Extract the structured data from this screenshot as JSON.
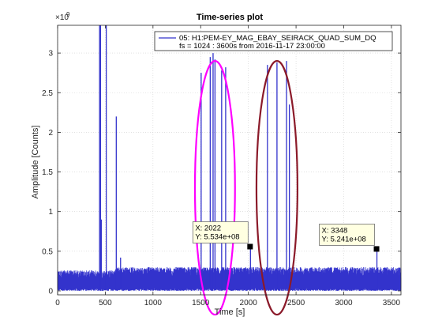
{
  "chart_data": {
    "type": "line",
    "title": "Time-series plot",
    "xlabel": "Time [s]",
    "ylabel": "Amplitude [Counts]",
    "y_exponent_label": "×10",
    "y_exponent_power": "9",
    "xlim": [
      0,
      3600
    ],
    "ylim": [
      -50000000.0,
      3350000000.0
    ],
    "x_ticks": [
      0,
      500,
      1000,
      1500,
      2000,
      2500,
      3000,
      3500
    ],
    "x_tick_labels": [
      "0",
      "500",
      "1000",
      "1500",
      "2000",
      "2500",
      "3000",
      "3500"
    ],
    "y_ticks": [
      0,
      500000000.0,
      1000000000.0,
      1500000000.0,
      2000000000.0,
      2500000000.0,
      3000000000.0
    ],
    "y_tick_labels": [
      "0",
      "0.5",
      "1",
      "1.5",
      "2",
      "2.5",
      "3"
    ],
    "grid": true,
    "legend_position": "top-right",
    "series": [
      {
        "name": "05: H1:PEM-EY_MAG_EBAY_SEIRACK_QUAD_SUM_DQ",
        "color": "#3333cc",
        "baseline": {
          "noise_low": 40000000.0,
          "noise_high": 260000000.0,
          "step_time": 600,
          "after_step_high": 300000000.0
        },
        "spikes": [
          {
            "x": 440,
            "y": 3350000000.0
          },
          {
            "x": 450,
            "y": 3350000000.0
          },
          {
            "x": 458,
            "y": 900000000.0
          },
          {
            "x": 510,
            "y": 3350000000.0
          },
          {
            "x": 615,
            "y": 2200000000.0
          },
          {
            "x": 660,
            "y": 420000000.0
          },
          {
            "x": 1505,
            "y": 2750000000.0
          },
          {
            "x": 1600,
            "y": 2950000000.0
          },
          {
            "x": 1630,
            "y": 3000000000.0
          },
          {
            "x": 1650,
            "y": 2920000000.0
          },
          {
            "x": 1720,
            "y": 2780000000.0
          },
          {
            "x": 1762,
            "y": 2820000000.0
          },
          {
            "x": 2022,
            "y": 553400000.0
          },
          {
            "x": 2200,
            "y": 2850000000.0
          },
          {
            "x": 2300,
            "y": 2880000000.0
          },
          {
            "x": 2400,
            "y": 2900000000.0
          },
          {
            "x": 2430,
            "y": 2350000000.0
          },
          {
            "x": 3348,
            "y": 524100000.0
          }
        ]
      }
    ],
    "legend_line2": "fs = 1024 : 3600s from 2016-11-17 23:00:00",
    "datatips": [
      {
        "x": 2022,
        "y": 553400000.0,
        "x_text": "X: 2022",
        "y_text": "Y: 5.534e+08"
      },
      {
        "x": 3348,
        "y": 524100000.0,
        "x_text": "X: 3348",
        "y_text": "Y: 5.241e+08"
      }
    ],
    "annotations": [
      {
        "shape": "ellipse",
        "color": "#ff00ff",
        "cx": 1650,
        "cy": 1300000000.0,
        "rx": 210,
        "ry": 1600000000.0
      },
      {
        "shape": "ellipse",
        "color": "#8b1a2a",
        "cx": 2300,
        "cy": 1300000000.0,
        "rx": 215,
        "ry": 1600000000.0
      }
    ]
  }
}
